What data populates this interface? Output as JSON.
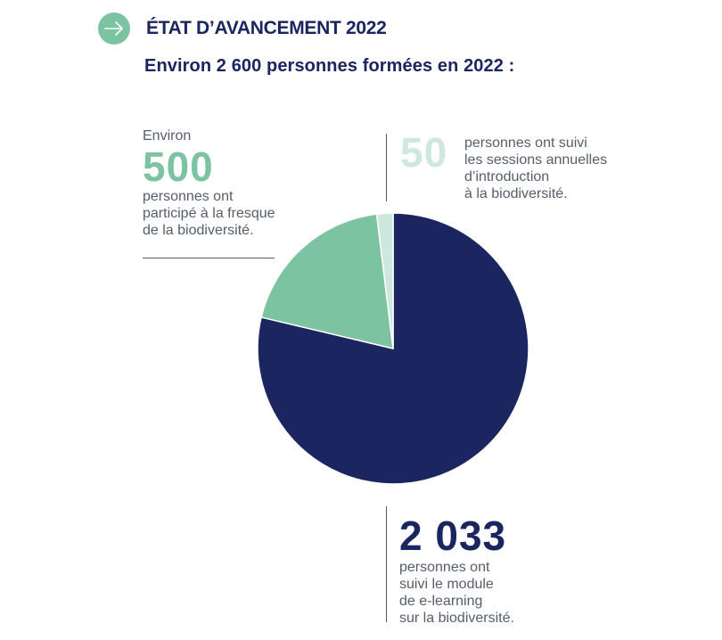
{
  "header": {
    "title": "ÉTAT D’AVANCEMENT 2022",
    "icon": "arrow-right-icon"
  },
  "subtitle": "Environ 2 600 personnes formées en 2022 :",
  "colors": {
    "navy": "#1b2560",
    "green": "#7cc4a1",
    "pale_green": "#cfe8dd",
    "text_gray": "#555e6b"
  },
  "chart_data": {
    "type": "pie",
    "title": "Environ 2 600 personnes formées en 2022 :",
    "start": "12 o'clock, clockwise",
    "slices": [
      {
        "value": 2033,
        "value_label": "2 033",
        "prefix": "",
        "description": "personnes ont suivi le module de e-learning sur la biodiversité.",
        "color": "#1b2560"
      },
      {
        "value": 500,
        "value_label": "500",
        "prefix": "Environ",
        "description": "personnes ont participé à la fresque de la biodiversité.",
        "color": "#7cc4a1"
      },
      {
        "value": 50,
        "value_label": "50",
        "prefix": "",
        "description": "personnes ont suivi les sessions annuelles d’introduction à la biodiversité.",
        "color": "#cfe8dd"
      }
    ]
  },
  "labels": {
    "fresque": {
      "prefix": "Environ",
      "number": "500",
      "line1": "personnes ont",
      "line2": "participé à la fresque",
      "line3": "de la biodiversité."
    },
    "sessions": {
      "number": "50",
      "line1": "personnes ont suivi",
      "line2": "les sessions annuelles",
      "line3": "d’introduction",
      "line4": "à la biodiversité."
    },
    "elearning": {
      "number": "2 033",
      "line1": "personnes ont",
      "line2": "suivi le module",
      "line3": "de e-learning",
      "line4": "sur la biodiversité."
    }
  }
}
